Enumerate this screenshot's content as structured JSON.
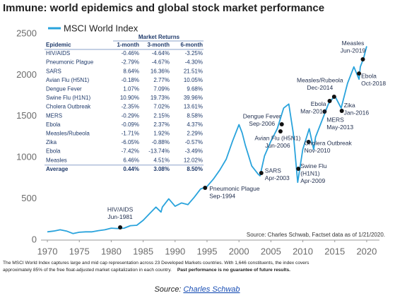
{
  "chart_data": {
    "type": "line",
    "title": "Immune: world epidemics and global stock market performance",
    "xlim": [
      1969,
      2022
    ],
    "xticks": [
      1970,
      1975,
      1980,
      1985,
      1990,
      1995,
      2000,
      2005,
      2010,
      2015,
      2020
    ],
    "ylim": [
      0,
      2500
    ],
    "yticks": [
      0,
      500,
      1000,
      1500,
      2000,
      2500
    ],
    "grid": false,
    "series": [
      {
        "name": "MSCI World Index",
        "color": "#29a3dc",
        "x": [
          1970,
          1971,
          1972,
          1973,
          1974,
          1975,
          1976,
          1977,
          1978,
          1979,
          1980,
          1981,
          1982,
          1983,
          1984,
          1985,
          1986,
          1987,
          1987.8,
          1988,
          1989,
          1990,
          1991,
          1992,
          1993,
          1994,
          1995,
          1996,
          1997,
          1998,
          1999,
          2000,
          2000.5,
          2001,
          2002,
          2003,
          2003.3,
          2004,
          2005,
          2006,
          2007,
          2007.8,
          2008.5,
          2009.2,
          2010,
          2011,
          2011.7,
          2012,
          2013,
          2014,
          2015,
          2016,
          2017,
          2018,
          2018.8,
          2019,
          2019.5,
          2020
        ],
        "values": [
          100,
          110,
          125,
          110,
          80,
          95,
          100,
          100,
          115,
          125,
          145,
          140,
          145,
          175,
          180,
          240,
          320,
          400,
          340,
          400,
          500,
          410,
          450,
          430,
          520,
          620,
          650,
          740,
          850,
          980,
          1200,
          1400,
          1300,
          1150,
          900,
          800,
          780,
          1020,
          1200,
          1350,
          1600,
          1650,
          1300,
          700,
          1100,
          1350,
          1100,
          1250,
          1450,
          1650,
          1750,
          1600,
          1900,
          2100,
          1950,
          2100,
          2200,
          2350
        ]
      }
    ],
    "annotations": [
      {
        "label": [
          "HIV/AIDS",
          "Jun-1981"
        ],
        "x": 1981.4,
        "y": 154
      },
      {
        "label": [
          "Pneumonic Plague",
          "Sep-1994"
        ],
        "x": 1994.7,
        "y": 634
      },
      {
        "label": [
          "SARS",
          "Apr-2003"
        ],
        "x": 2003.5,
        "y": 813
      },
      {
        "label": [
          "Avian Flu (H5N1)",
          "Jun-2006"
        ],
        "x": 2006.5,
        "y": 1318
      },
      {
        "label": [
          "Dengue Fever",
          "Sep-2006"
        ],
        "x": 2006.7,
        "y": 1404
      },
      {
        "label": [
          "Swine Flu",
          "(H1N1)",
          "Apr-2009"
        ],
        "x": 2009.3,
        "y": 865
      },
      {
        "label": [
          "Cholera Outbreak",
          "Nov-2010"
        ],
        "x": 2010.9,
        "y": 1190
      },
      {
        "label": [
          "MERS",
          "May-2013"
        ],
        "x": 2013.4,
        "y": 1558
      },
      {
        "label": [
          "Ebola",
          "Mar-2014"
        ],
        "x": 2014.2,
        "y": 1687
      },
      {
        "label": [
          "Measles/Rubeola",
          "Dec-2014"
        ],
        "x": 2014.9,
        "y": 1738
      },
      {
        "label": [
          "Zika",
          "Jan-2016"
        ],
        "x": 2016.1,
        "y": 1567
      },
      {
        "label": [
          "Ebola",
          "Oct-2018"
        ],
        "x": 2018.8,
        "y": 2020
      },
      {
        "label": [
          "Measles",
          "Jun-2019"
        ],
        "x": 2019.4,
        "y": 2192
      }
    ],
    "table": {
      "group_header": "Market Returns",
      "columns": [
        "Epidemic",
        "1-month",
        "3-month",
        "6-month"
      ],
      "rows": [
        [
          "HIV/AIDS",
          "-0.46%",
          "-4.64%",
          "-3.25%"
        ],
        [
          "Pneumonic Plague",
          "-2.79%",
          "-4.67%",
          "-4.30%"
        ],
        [
          "SARS",
          "8.64%",
          "16.36%",
          "21.51%"
        ],
        [
          "Avian Flu (H5N1)",
          "-0.18%",
          "2.77%",
          "10.05%"
        ],
        [
          "Dengue Fever",
          "1.07%",
          "7.09%",
          "9.68%"
        ],
        [
          "Swine Flu (H1N1)",
          "10.90%",
          "19.73%",
          "39.96%"
        ],
        [
          "Cholera Outbreak",
          "-2.35%",
          "7.02%",
          "13.61%"
        ],
        [
          "MERS",
          "-0.29%",
          "2.15%",
          "8.58%"
        ],
        [
          "Ebola",
          "-0.09%",
          "2.37%",
          "4.37%"
        ],
        [
          "Measles/Rubeola",
          "-1.71%",
          "1.92%",
          "2.29%"
        ],
        [
          "Zika",
          "-6.05%",
          "-0.88%",
          "-0.57%"
        ],
        [
          "Ebola",
          "-7.42%",
          "-13.74%",
          "-3.49%"
        ],
        [
          "Measles",
          "6.46%",
          "4.51%",
          "12.02%"
        ],
        [
          "Average",
          "0.44%",
          "3.08%",
          "8.50%"
        ]
      ]
    },
    "source_note": "Source: Charles Schwab, Factset data as of 1/21/2020."
  },
  "footer": {
    "line1": "The MSCI World Index captures large and mid cap representation across 23 Developed Markets countries. With 1,646 constituents, the index covers",
    "line2": "approximately 85% of the free float-adjusted market capitalization in each country.",
    "line2_bold": "Past performance is no guarantee of future results.",
    "source_prefix": "Source:",
    "source_link": "Charles Schwab"
  }
}
